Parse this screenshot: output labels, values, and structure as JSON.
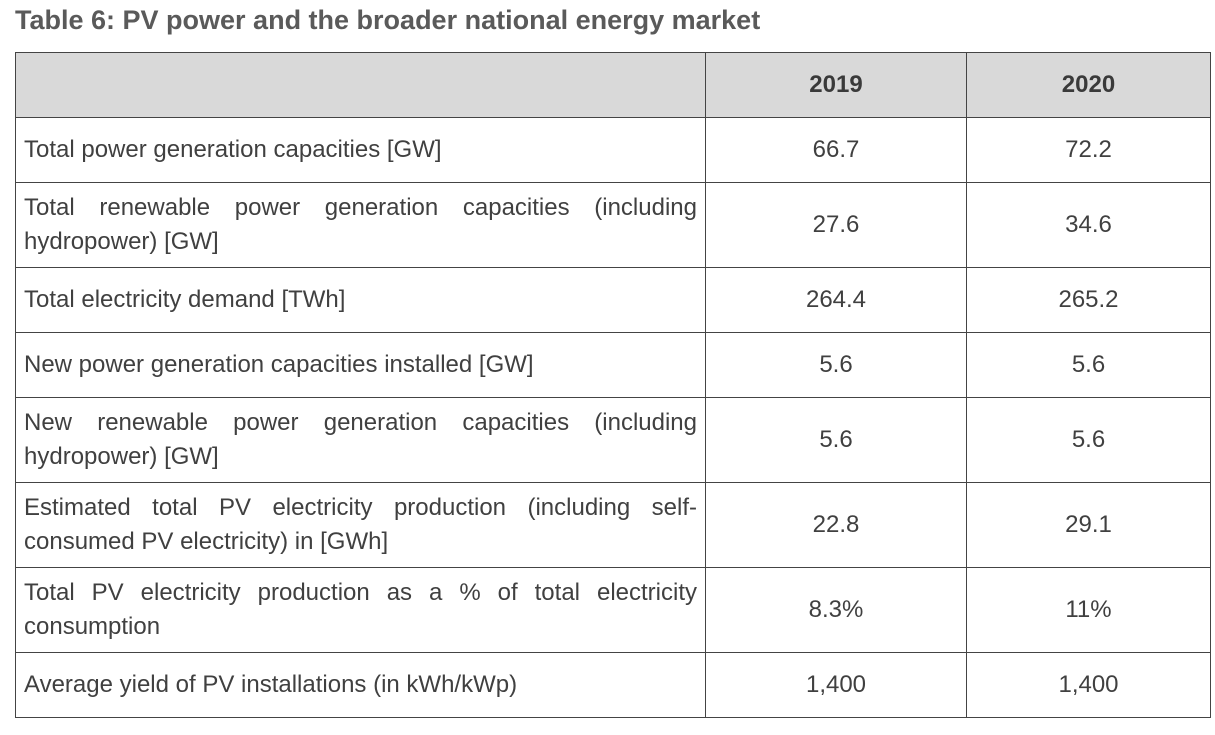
{
  "title": "Table 6: PV power and the broader national energy market",
  "table": {
    "headers": [
      "",
      "2019",
      "2020"
    ],
    "rows": [
      {
        "label": "Total power generation capacities [GW]",
        "v2019": "66.7",
        "v2020": "72.2"
      },
      {
        "label": "Total renewable power generation capacities (including hydropower) [GW]",
        "v2019": "27.6",
        "v2020": "34.6"
      },
      {
        "label": "Total electricity demand [TWh]",
        "v2019": "264.4",
        "v2020": "265.2"
      },
      {
        "label": "New power generation capacities installed [GW]",
        "v2019": "5.6",
        "v2020": "5.6"
      },
      {
        "label": "New renewable power generation capacities (including hydropower) [GW]",
        "v2019": "5.6",
        "v2020": "5.6"
      },
      {
        "label": "Estimated total PV electricity production (including self-consumed PV electricity) in [GWh]",
        "v2019": "22.8",
        "v2020": "29.1"
      },
      {
        "label": "Total PV electricity production as a % of total electricity consumption",
        "v2019": "8.3%",
        "v2020": "11%"
      },
      {
        "label": "Average yield of PV installations (in kWh/kWp)",
        "v2019": "1,400",
        "v2020": "1,400"
      }
    ]
  }
}
